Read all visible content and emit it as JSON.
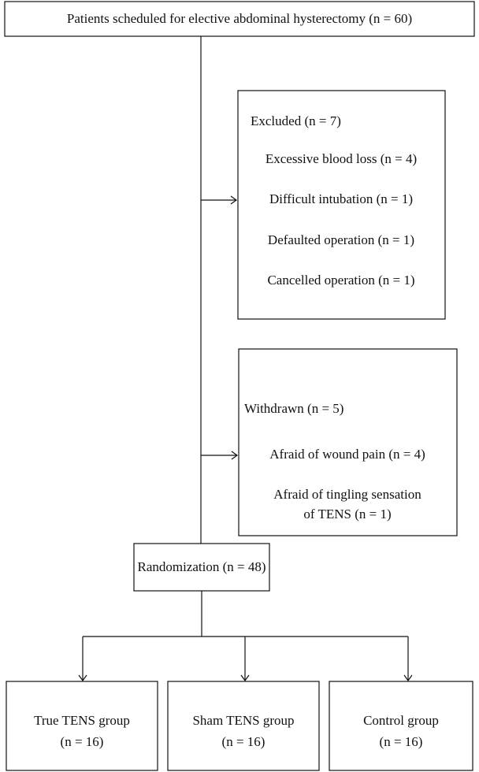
{
  "header": {
    "title": "Patients scheduled for elective abdominal hysterectomy (n = 60)"
  },
  "excluded": {
    "title": "Excluded (n = 7)",
    "items": [
      "Excessive blood loss (n = 4)",
      "Difficult intubation (n = 1)",
      "Defaulted operation (n = 1)",
      "Cancelled operation (n = 1)"
    ]
  },
  "withdrawn": {
    "title": "Withdrawn (n = 5)",
    "items": [
      "Afraid of wound pain (n = 4)",
      "Afraid of tingling sensation",
      "of TENS (n = 1)"
    ]
  },
  "randomization": {
    "label": "Randomization (n = 48)"
  },
  "groups": [
    {
      "name": "True TENS group",
      "count": "(n = 16)"
    },
    {
      "name": "Sham TENS group",
      "count": "(n = 16)"
    },
    {
      "name": "Control group",
      "count": "(n = 16)"
    }
  ]
}
